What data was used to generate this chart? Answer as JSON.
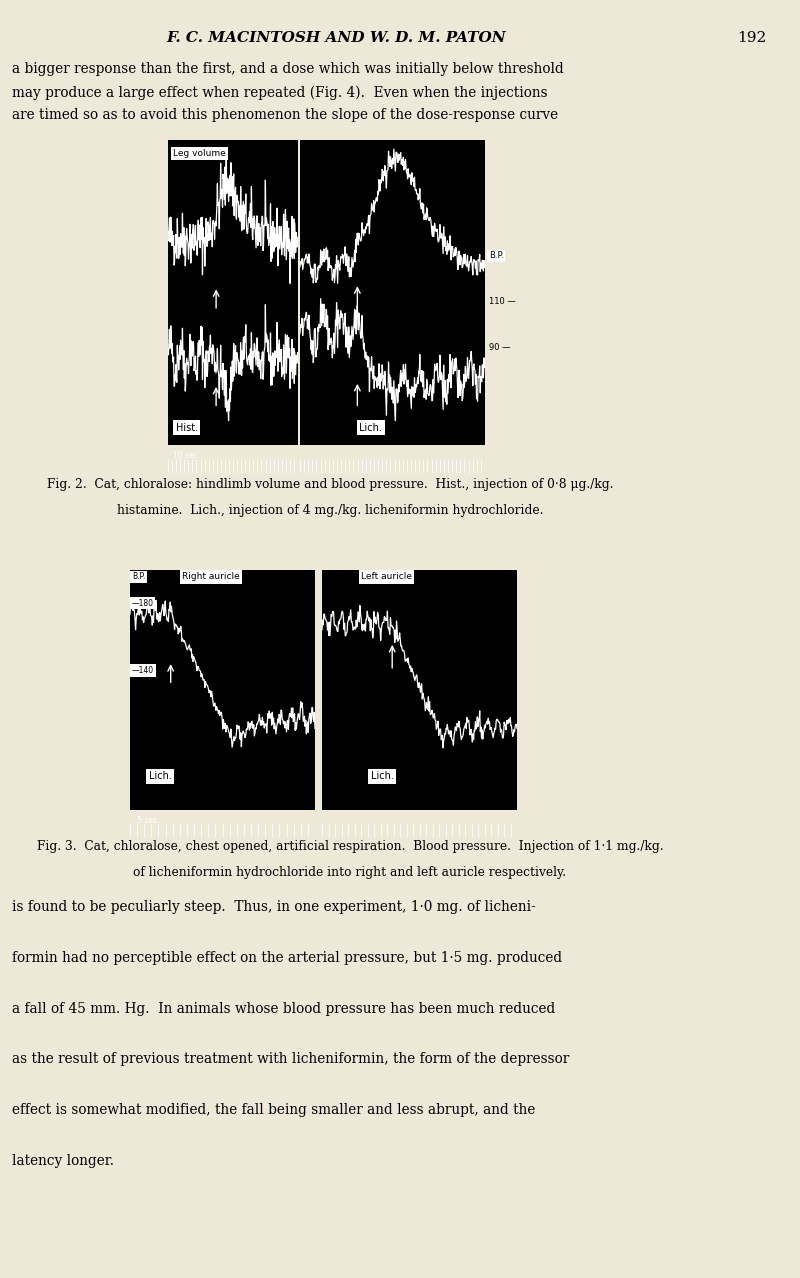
{
  "bg_color": "#ede8d8",
  "header_text": "F. C. MACINTOSH AND W. D. M. PATON",
  "page_number": "192",
  "para1_line1": "a bigger response than the first, and a dose which was initially below threshold",
  "para1_line2": "may produce a large effect when repeated (Fig. 4).  Even when the injections",
  "para1_line3": "are timed so as to avoid this phenomenon the slope of the dose-response curve",
  "fig2_caption_line1": "Fig. 2.  Cat, chloralose: hindlimb volume and blood pressure.  Hist., injection of 0·8 μg./kg.",
  "fig2_caption_line2": "histamine.  Lich., injection of 4 mg./kg. licheniformin hydrochloride.",
  "fig3_caption_line1": "Fig. 3.  Cat, chloralose, chest opened, artificial respiration.  Blood pressure.  Injection of 1·1 mg./kg.",
  "fig3_caption_line2": "of licheniformin hydrochloride into right and left auricle respectively.",
  "para2_line1": "is found to be peculiarly steep.  Thus, in one experiment, 1·0 mg. of licheni-",
  "para2_line2": "formin had no perceptible effect on the arterial pressure, but 1·5 mg. produced",
  "para2_line3": "a fall of 45 mm. Hg.  In animals whose blood pressure has been much reduced",
  "para2_line4": "as the result of previous treatment with licheniformin, the form of the depressor",
  "para2_line5": "effect is somewhat modified, the fall being smaller and less abrupt, and the",
  "para2_line6": "latency longer."
}
